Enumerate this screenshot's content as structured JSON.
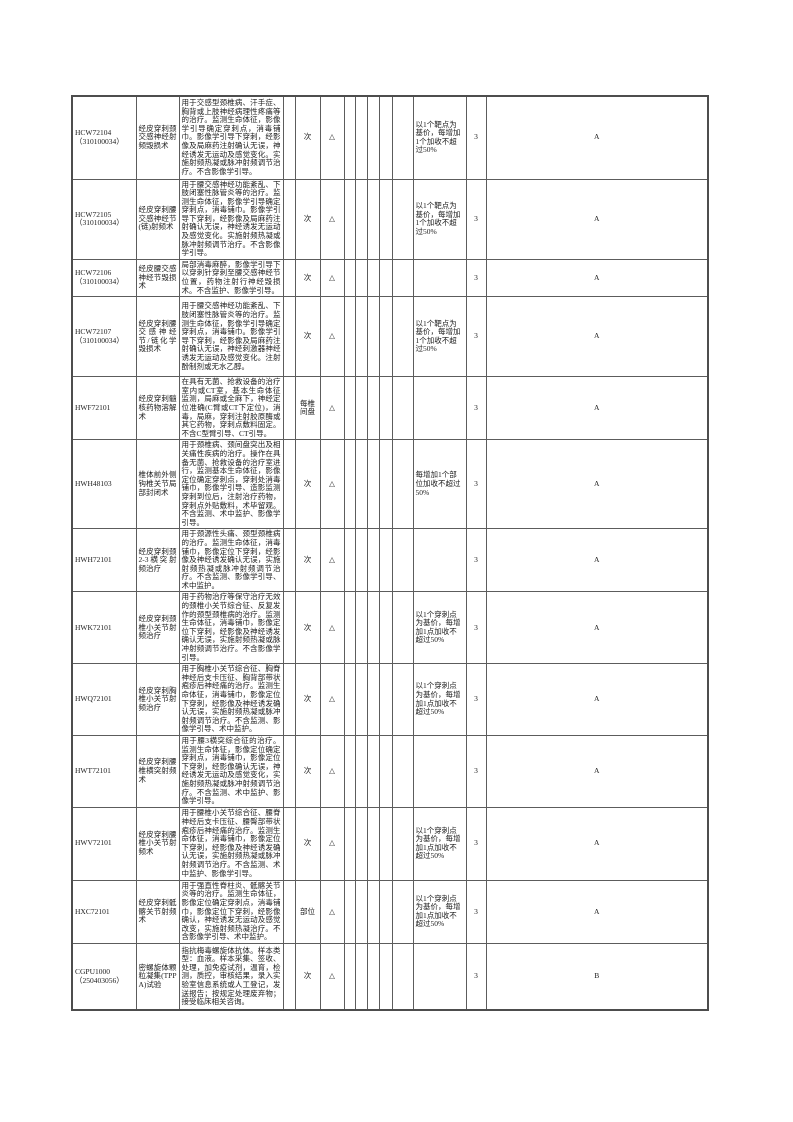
{
  "colors": {
    "page_background": "#ffffff",
    "border": "#5c5c5c",
    "text": "#1c1c1c"
  },
  "table": {
    "pricing_class_symbol": "△",
    "rows": [
      {
        "code": "HCW72104",
        "code_sub": "（310100034）",
        "name": "经皮穿刺颈交感神经射频毁损术",
        "description": "用于交感型颈椎病、汗手症、胸背或上肢神经病理性疼痛等的治疗。监测生命体征，影像学引导确定穿刺点，消毒铺巾。影像学引导下穿刺，经影像及局麻药注射确认无误，神经诱发无运动及感觉变化。实施射频热凝或脉冲射频调节治疗。不含影像学引导。",
        "unit": "次",
        "price_class": "△",
        "addition_note": "以1个靶点为基价，每增加1个加收不超过50%",
        "value": "3",
        "grade": "A"
      },
      {
        "code": "HCW72105",
        "code_sub": "（310100034）",
        "name": "经皮穿刺腰交感神经节(链)射频术",
        "description": "用于腰交感神经功能紊乱、下肢闭塞性脉管炎等的治疗。监测生命体征，影像学引导确定穿刺点，消毒铺巾。影像学引导下穿刺，经影像及局麻药注射确认无误，神经诱发无运动及感觉变化。实施射频热凝或脉冲射频调节治疗。不含影像学引导。",
        "unit": "次",
        "price_class": "△",
        "addition_note": "以1个靶点为基价，每增加1个加收不超过50%",
        "value": "3",
        "grade": "A"
      },
      {
        "code": "HCW72106",
        "code_sub": "（310100034）",
        "name": "经皮腰交感神经节毁损术",
        "description": "局部消毒麻醉，影像学引导下以穿刺针穿刺至腰交感神经节位置，药物注射行神经毁损术。不含监护、影像学引导。",
        "unit": "次",
        "price_class": "△",
        "addition_note": "",
        "value": "3",
        "grade": "A"
      },
      {
        "code": "HCW72107",
        "code_sub": "（310100034）",
        "name": "经皮穿刺腰交感神经节/链化学毁损术",
        "description": "用于腰交感神经功能紊乱、下肢闭塞性脉管炎等的治疗。监测生命体征，影像学引导确定穿刺点，消毒铺巾。影像学引导下穿刺，经影像及局麻药注射确认无误，神经刺激器神经诱发无运动及感觉变化。注射酚制剂或无水乙醇。",
        "unit": "次",
        "price_class": "△",
        "addition_note": "以1个靶点为基价，每增加1个加收不超过50%",
        "value": "3",
        "grade": "A"
      },
      {
        "code": "HWF72101",
        "code_sub": "",
        "name": "经皮穿刺髓核药物溶解术",
        "description": "在具有无菌、抢救设备的治疗室内或CT室，基本生命体征监测，局麻或全麻下，神经定位准确(C臂或CT下定位)，消毒，局麻，穿刺注射胶原酶或其它药物，穿刺点敷料固定。不含C型臂引导、CT引导。",
        "unit": "每椎间盘",
        "price_class": "△",
        "addition_note": "",
        "value": "3",
        "grade": "A"
      },
      {
        "code": "HWH48103",
        "code_sub": "",
        "name": "椎体前外侧钩椎关节局部封闭术",
        "description": "用于颈椎病、颈间盘突出及相关痛性疾病的治疗。操作在具备无菌、抢救设备的治疗室进行，监测基本生命体征，影像定位确定穿刺点，穿刺处消毒铺巾，影像学引导、造影监测穿刺到位后，注射治疗药物，穿刺点外贴敷料，术毕留观。不含监测、术中监护、影像学引导。",
        "unit": "次",
        "price_class": "△",
        "addition_note": "每增加1个部位加收不超过50%",
        "value": "3",
        "grade": "A"
      },
      {
        "code": "HWH72101",
        "code_sub": "",
        "name": "经皮穿刺颈2-3横突射频治疗",
        "description": "用于颈源性头痛、颈型颈椎病的治疗。监测生命体征，消毒铺巾，影像定位下穿刺，经影像及神经诱发确认无误，实施射频热凝或脉冲射频调节治疗。不含监测、影像学引导、术中监护。",
        "unit": "次",
        "price_class": "△",
        "addition_note": "",
        "value": "3",
        "grade": "A"
      },
      {
        "code": "HWK72101",
        "code_sub": "",
        "name": "经皮穿刺颈椎小关节射频治疗",
        "description": "用于药物治疗等保守治疗无效的颈椎小关节综合征、反复发作的颈型颈椎病的治疗。监测生命体征，消毒铺巾，影像定位下穿刺，经影像及神经诱发确认无误，实施射频热凝或脉冲射频调节治疗。不含影像学引导。",
        "unit": "次",
        "price_class": "△",
        "addition_note": "以1个穿刺点为基价，每增加1点加收不超过50%",
        "value": "3",
        "grade": "A"
      },
      {
        "code": "HWQ72101",
        "code_sub": "",
        "name": "经皮穿刺胸椎小关节射频治疗",
        "description": "用于胸椎小关节综合征、胸脊神经后支卡压征、胸背部带状疱疹后神经痛的治疗。监测生命体征，消毒铺巾，影像定位下穿刺，经影像及神经诱发确认无误，实施射频热凝或脉冲射频调节治疗。不含监测、影像学引导、术中监护。",
        "unit": "次",
        "price_class": "△",
        "addition_note": "以1个穿刺点为基价，每增加1点加收不超过50%",
        "value": "3",
        "grade": "A"
      },
      {
        "code": "HWT72101",
        "code_sub": "",
        "name": "经皮穿刺腰椎横突射频术",
        "description": "用于腰3横突综合征的治疗。监测生命体征，影像定位确定穿刺点，消毒铺巾，影像定位下穿刺，经影像确认无误，神经诱发无运动及感觉变化，实施射频热凝或脉冲射频调节治疗。不含监测、术中监护、影像学引导。",
        "unit": "次",
        "price_class": "△",
        "addition_note": "",
        "value": "3",
        "grade": "A"
      },
      {
        "code": "HWV72101",
        "code_sub": "",
        "name": "经皮穿刺腰椎小关节射频术",
        "description": "用于腰椎小关节综合征、腰脊神经后支卡压征、腰臀部带状疱疹后神经痛的治疗。监测生命体征，消毒铺巾，影像定位下穿刺，经影像及神经诱发确认无误，实施射频热凝或脉冲射频调节治疗。不含监测、术中监护、影像学引导。",
        "unit": "次",
        "price_class": "△",
        "addition_note": "以1个穿刺点为基价，每增加1点加收不超过50%",
        "value": "3",
        "grade": "A"
      },
      {
        "code": "HXC72101",
        "code_sub": "",
        "name": "经皮穿刺骶髂关节射频术",
        "description": "用于强直性脊柱炎、骶髂关节炎等的治疗。监测生命体征，影像定位确定穿刺点，消毒铺巾，影像定位下穿刺，经影像确认，神经诱发无运动及感觉改变，实施射频热凝治疗。不含影像学引导、术中监护。",
        "unit": "部位",
        "price_class": "△",
        "addition_note": "以1个穿刺点为基价，每增加1点加收不超过50%",
        "value": "3",
        "grade": "A"
      },
      {
        "code": "CGPU1000",
        "code_sub": "（250403056）",
        "name": "密螺旋体颗粒凝集(TPPA)试验",
        "description": "指抗梅毒螺旋体抗体。样本类型：血液。样本采集、签收、处理，加免疫试剂，温育，检测，质控，审核结果，录入实验室信息系统或人工登记，发送报告；按规定处理废弃物；接受临床相关咨询。",
        "unit": "次",
        "price_class": "△",
        "addition_note": "",
        "value": "3",
        "grade": "B"
      }
    ]
  }
}
